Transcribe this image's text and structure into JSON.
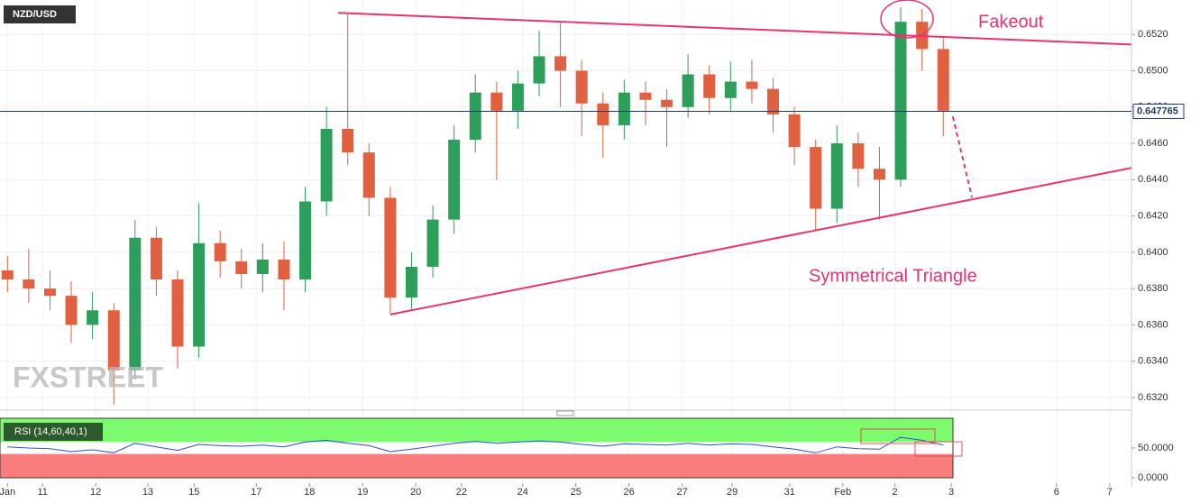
{
  "chart_data": {
    "type": "candlestick",
    "symbol": "NZD/USD",
    "watermark": "FXSTREET",
    "xlim": [
      -0.14,
      21.14
    ],
    "xticks": [
      {
        "value": 0,
        "label": "Jan"
      },
      {
        "value": 0.66,
        "label": "11"
      },
      {
        "value": 1.66,
        "label": "12"
      },
      {
        "value": 2.64,
        "label": "13"
      },
      {
        "value": 3.51,
        "label": "15"
      },
      {
        "value": 4.68,
        "label": "17"
      },
      {
        "value": 5.68,
        "label": "18"
      },
      {
        "value": 6.68,
        "label": "19"
      },
      {
        "value": 7.68,
        "label": "20"
      },
      {
        "value": 8.54,
        "label": "22"
      },
      {
        "value": 9.69,
        "label": "24"
      },
      {
        "value": 10.69,
        "label": "25"
      },
      {
        "value": 11.69,
        "label": "26"
      },
      {
        "value": 12.69,
        "label": "27"
      },
      {
        "value": 13.63,
        "label": "29"
      },
      {
        "value": 14.71,
        "label": "31"
      },
      {
        "value": 15.71,
        "label": "Feb"
      },
      {
        "value": 16.69,
        "label": "2"
      },
      {
        "value": 17.75,
        "label": "3"
      },
      {
        "value": 19.73,
        "label": "6"
      },
      {
        "value": 20.73,
        "label": "7"
      }
    ],
    "ylim": [
      0.6313,
      0.6539
    ],
    "yticks": [
      {
        "value": 0.632,
        "label": "0.6320"
      },
      {
        "value": 0.634,
        "label": "0.6340"
      },
      {
        "value": 0.636,
        "label": "0.6360"
      },
      {
        "value": 0.638,
        "label": "0.6380"
      },
      {
        "value": 0.64,
        "label": "0.6400"
      },
      {
        "value": 0.642,
        "label": "0.6420"
      },
      {
        "value": 0.644,
        "label": "0.6440"
      },
      {
        "value": 0.646,
        "label": "0.6460"
      },
      {
        "value": 0.648,
        "label": "0.6480"
      },
      {
        "value": 0.65,
        "label": "0.6500"
      },
      {
        "value": 0.652,
        "label": "0.6520"
      }
    ],
    "grid": true,
    "up_color": "#2e9e5b",
    "down_color": "#e0603f",
    "current_price": 0.647765,
    "x": [
      0,
      0.4,
      0.8,
      1.2,
      1.6,
      2,
      2.4,
      2.8,
      3.2,
      3.6,
      4,
      4.4,
      4.8,
      5.2,
      5.6,
      6,
      6.4,
      6.8,
      7.2,
      7.6,
      8,
      8.4,
      8.8,
      9.2,
      9.6,
      10,
      10.4,
      10.8,
      11.2,
      11.6,
      12,
      12.4,
      12.8,
      13.2,
      13.6,
      14,
      14.4,
      14.8,
      15.2,
      15.6,
      16,
      16.4,
      16.8,
      17.2,
      17.6
    ],
    "open": [
      0.639,
      0.6385,
      0.638,
      0.6376,
      0.636,
      0.6368,
      0.6335,
      0.6408,
      0.6385,
      0.6348,
      0.6405,
      0.6395,
      0.6388,
      0.6396,
      0.6385,
      0.6428,
      0.6468,
      0.6455,
      0.643,
      0.6375,
      0.6392,
      0.6418,
      0.6462,
      0.6488,
      0.6478,
      0.6493,
      0.6508,
      0.65,
      0.6482,
      0.647,
      0.6488,
      0.6484,
      0.648,
      0.6498,
      0.6485,
      0.6494,
      0.649,
      0.6476,
      0.6458,
      0.6424,
      0.646,
      0.6446,
      0.644,
      0.6527,
      0.6512
    ],
    "high": [
      0.6398,
      0.6402,
      0.639,
      0.6384,
      0.6378,
      0.6372,
      0.6418,
      0.6414,
      0.639,
      0.6427,
      0.6412,
      0.6402,
      0.6405,
      0.6406,
      0.6436,
      0.648,
      0.6531,
      0.646,
      0.6436,
      0.64,
      0.6426,
      0.647,
      0.6498,
      0.6494,
      0.65,
      0.6522,
      0.6527,
      0.6506,
      0.6488,
      0.6495,
      0.6494,
      0.649,
      0.6509,
      0.6503,
      0.6505,
      0.6506,
      0.6496,
      0.648,
      0.6462,
      0.647,
      0.6466,
      0.6458,
      0.6535,
      0.6534,
      0.6518
    ],
    "low": [
      0.6378,
      0.6372,
      0.6368,
      0.635,
      0.6352,
      0.6316,
      0.633,
      0.6376,
      0.6336,
      0.6342,
      0.6386,
      0.638,
      0.6378,
      0.6368,
      0.6378,
      0.642,
      0.6448,
      0.642,
      0.6366,
      0.6368,
      0.6386,
      0.641,
      0.6455,
      0.644,
      0.6468,
      0.6486,
      0.648,
      0.6464,
      0.6452,
      0.6462,
      0.647,
      0.6458,
      0.6474,
      0.6476,
      0.6478,
      0.6482,
      0.6466,
      0.6448,
      0.6412,
      0.6416,
      0.6436,
      0.6418,
      0.6436,
      0.65,
      0.6464
    ],
    "close": [
      0.6385,
      0.638,
      0.6376,
      0.636,
      0.6368,
      0.6335,
      0.6408,
      0.6385,
      0.6348,
      0.6405,
      0.6395,
      0.6388,
      0.6396,
      0.6385,
      0.6428,
      0.6468,
      0.6455,
      0.643,
      0.6375,
      0.6392,
      0.6418,
      0.6462,
      0.6488,
      0.6478,
      0.6493,
      0.6508,
      0.65,
      0.6482,
      0.647,
      0.6488,
      0.6484,
      0.648,
      0.6498,
      0.6485,
      0.6494,
      0.649,
      0.6476,
      0.6458,
      0.6424,
      0.646,
      0.6446,
      0.644,
      0.6527,
      0.6512,
      0.6478
    ],
    "trendlines": [
      {
        "x": [
          6.22,
          21.14
        ],
        "y": [
          0.65319,
          0.65145
        ],
        "color": "#e8336e",
        "dashed": false
      },
      {
        "x": [
          7.2,
          21.14
        ],
        "y": [
          0.63657,
          0.64465
        ],
        "color": "#e8336e",
        "dashed": false
      },
      {
        "x": [
          17.78,
          18.14
        ],
        "y": [
          0.64748,
          0.64302
        ],
        "color": "#e8336e",
        "dashed": true
      }
    ],
    "annotations": [
      "Fakeout",
      "Symmetrical Triangle"
    ],
    "rsi": {
      "label": "RSI (14,60,40,1)",
      "ylim": [
        0,
        100
      ],
      "yticks": [
        {
          "value": 50,
          "label": "50.0000"
        },
        {
          "value": 0,
          "label": "0.0000"
        }
      ],
      "upper": 60,
      "lower": 40,
      "color": "#2a4fd6",
      "values": [
        52,
        50,
        49,
        44,
        47,
        42,
        58,
        52,
        46,
        56,
        54,
        53,
        55,
        52,
        60,
        63,
        58,
        54,
        44,
        48,
        53,
        58,
        61,
        58,
        60,
        62,
        60,
        56,
        53,
        57,
        56,
        55,
        58,
        55,
        57,
        56,
        52,
        48,
        42,
        52,
        49,
        48,
        68,
        63,
        55
      ]
    }
  }
}
